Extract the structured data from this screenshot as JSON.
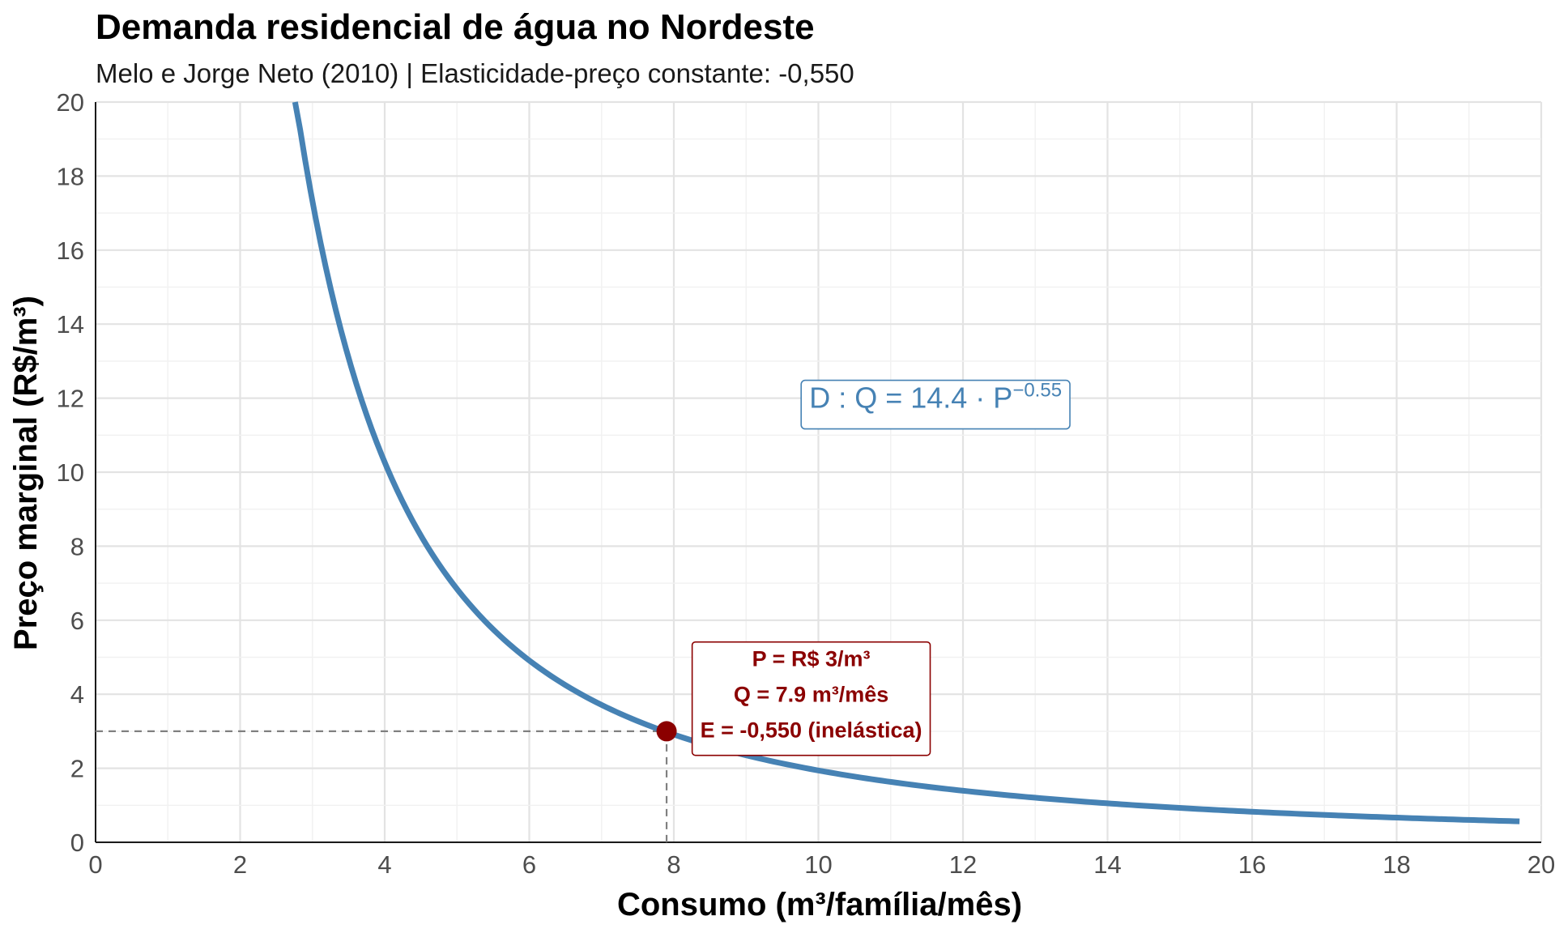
{
  "chart_data": {
    "type": "line",
    "title": "Demanda residencial de água no Nordeste",
    "subtitle": "Melo e Jorge Neto (2010) | Elasticidade-preço constante: -0,550",
    "xlabel": "Consumo (m³/família/mês)",
    "ylabel": "Preço marginal (R$/m³)",
    "xlim": [
      0,
      20
    ],
    "ylim": [
      0,
      20
    ],
    "x_ticks": [
      "0",
      "2",
      "4",
      "6",
      "8",
      "10",
      "12",
      "14",
      "16",
      "18",
      "20"
    ],
    "y_ticks": [
      "0",
      "2",
      "4",
      "6",
      "8",
      "10",
      "12",
      "14",
      "16",
      "18",
      "20"
    ],
    "grid": true,
    "curve": {
      "model": "Q = 14.4 · P^-0.55",
      "A": 14.4,
      "elasticity": -0.55,
      "q_range": [
        2.76,
        19.7
      ],
      "color": "#4682B4",
      "points": [
        {
          "q": 2.76,
          "p": 20.0
        },
        {
          "q": 3.0,
          "p": 17.33
        },
        {
          "q": 4.0,
          "p": 10.24
        },
        {
          "q": 5.0,
          "p": 6.84
        },
        {
          "q": 6.0,
          "p": 4.92
        },
        {
          "q": 7.0,
          "p": 3.71
        },
        {
          "q": 7.9,
          "p": 3.0
        },
        {
          "q": 10.0,
          "p": 1.94
        },
        {
          "q": 12.0,
          "p": 1.39
        },
        {
          "q": 14.0,
          "p": 1.05
        },
        {
          "q": 16.0,
          "p": 0.83
        },
        {
          "q": 18.0,
          "p": 0.67
        },
        {
          "q": 19.7,
          "p": 0.57
        }
      ]
    },
    "equation_label": {
      "text": "D :  Q = 14.4 · P",
      "exponent": "−0.55",
      "color": "#4682B4",
      "anchor": {
        "x": 10.5,
        "y": 12.0
      }
    },
    "highlight_point": {
      "x": 7.9,
      "y": 3.0,
      "color": "#8B0000",
      "guide_color": "#808080"
    },
    "info_box": {
      "lines": [
        "P = R$ 3/m³",
        "Q = 7.9 m³/mês",
        "E = -0,550 (inelástica)"
      ],
      "color": "#8B0000",
      "anchor": {
        "x": 9.9,
        "y": 5.5
      }
    }
  }
}
